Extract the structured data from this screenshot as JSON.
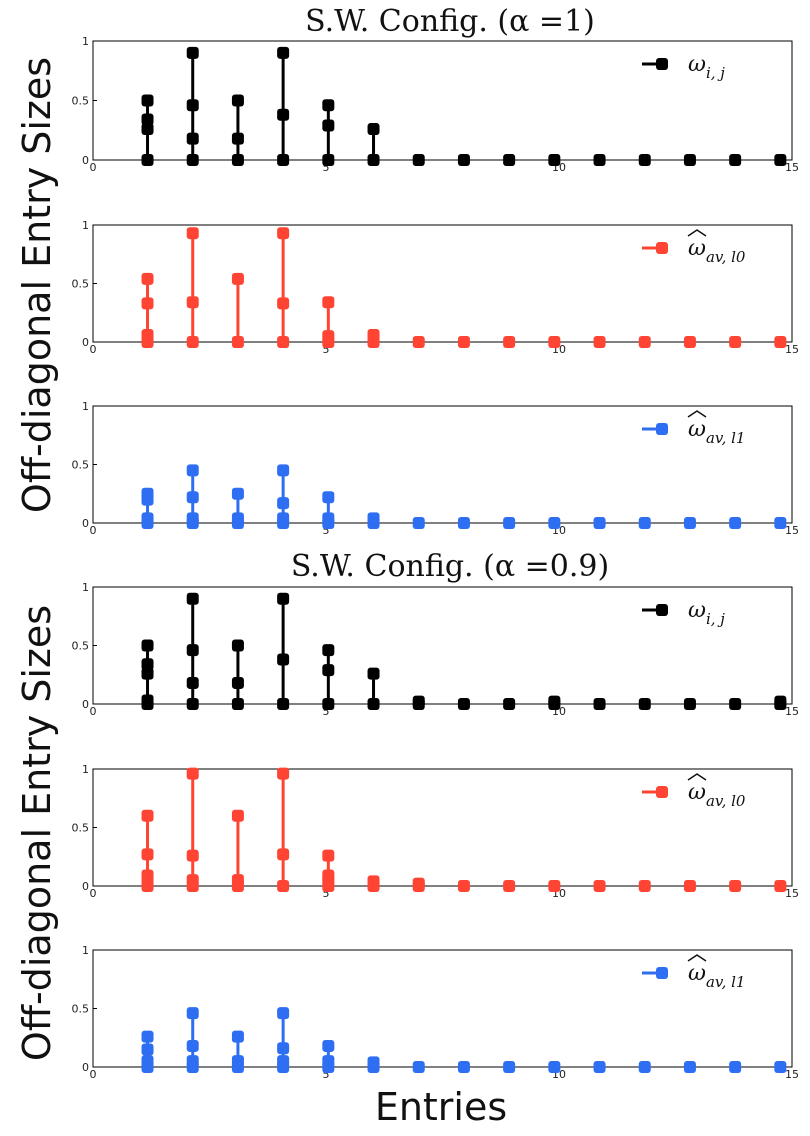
{
  "ylabel": "Off-diagonal Entry Sizes",
  "xlabel": "Entries",
  "chart_data": [
    {
      "title": "S.W. Config. (α =1)",
      "panels": [
        {
          "type": "scatter",
          "style": "stem",
          "legend": "ω_{i,j}",
          "legend_parts": {
            "base": "ω",
            "sub": "i, j",
            "hat": false
          },
          "color": "#000000",
          "xlim": [
            0,
            15
          ],
          "ylim": [
            0,
            1
          ],
          "xticks": [
            0,
            5,
            10,
            15
          ],
          "yticks": [
            0,
            0.5,
            1
          ],
          "x": [
            1,
            2,
            3,
            4,
            5,
            6,
            7,
            8,
            9,
            10,
            11,
            12,
            13,
            14,
            15
          ],
          "points": [
            [
              0,
              0.26,
              0.34,
              0.5
            ],
            [
              0,
              0.18,
              0.46,
              0.9
            ],
            [
              0,
              0.18,
              0.5
            ],
            [
              0,
              0.38,
              0.9
            ],
            [
              0,
              0.29,
              0.46
            ],
            [
              0,
              0.26
            ],
            [
              0
            ],
            [
              0
            ],
            [
              0
            ],
            [
              0
            ],
            [
              0
            ],
            [
              0
            ],
            [
              0
            ],
            [
              0
            ],
            [
              0
            ]
          ]
        },
        {
          "type": "scatter",
          "style": "stem",
          "legend": "ω̂_{av,l0}",
          "legend_parts": {
            "base": "ω",
            "sub": "av, l0",
            "hat": true
          },
          "color": "#ff4433",
          "xlim": [
            0,
            15
          ],
          "ylim": [
            0,
            1
          ],
          "xticks": [
            0,
            5,
            10,
            15
          ],
          "yticks": [
            0,
            0.5,
            1
          ],
          "x": [
            1,
            2,
            3,
            4,
            5,
            6,
            7,
            8,
            9,
            10,
            11,
            12,
            13,
            14,
            15
          ],
          "points": [
            [
              0,
              0.06,
              0.33,
              0.54
            ],
            [
              0,
              0.34,
              0.93
            ],
            [
              0,
              0.54
            ],
            [
              0,
              0.33,
              0.93
            ],
            [
              0,
              0.05,
              0.34
            ],
            [
              0,
              0.06
            ],
            [
              0
            ],
            [
              0
            ],
            [
              0
            ],
            [
              0
            ],
            [
              0
            ],
            [
              0
            ],
            [
              0
            ],
            [
              0
            ],
            [
              0
            ]
          ]
        },
        {
          "type": "scatter",
          "style": "stem",
          "legend": "ω̂_{av,l1}",
          "legend_parts": {
            "base": "ω",
            "sub": "av, l1",
            "hat": true
          },
          "color": "#2d6ef2",
          "xlim": [
            0,
            15
          ],
          "ylim": [
            0,
            1
          ],
          "xticks": [
            0,
            5,
            10,
            15
          ],
          "yticks": [
            0,
            0.5,
            1
          ],
          "x": [
            1,
            2,
            3,
            4,
            5,
            6,
            7,
            8,
            9,
            10,
            11,
            12,
            13,
            14,
            15
          ],
          "points": [
            [
              0,
              0.04,
              0.2,
              0.25
            ],
            [
              0,
              0.04,
              0.22,
              0.45
            ],
            [
              0,
              0.04,
              0.25
            ],
            [
              0,
              0.04,
              0.17,
              0.45
            ],
            [
              0,
              0.04,
              0.22
            ],
            [
              0,
              0.04
            ],
            [
              0
            ],
            [
              0
            ],
            [
              0
            ],
            [
              0
            ],
            [
              0
            ],
            [
              0
            ],
            [
              0
            ],
            [
              0
            ],
            [
              0
            ]
          ]
        }
      ]
    },
    {
      "title": "S.W. Config. (α =0.9)",
      "panels": [
        {
          "type": "scatter",
          "style": "stem",
          "legend": "ω_{i,j}",
          "legend_parts": {
            "base": "ω",
            "sub": "i, j",
            "hat": false
          },
          "color": "#000000",
          "xlim": [
            0,
            15
          ],
          "ylim": [
            0,
            1
          ],
          "xticks": [
            0,
            5,
            10,
            15
          ],
          "yticks": [
            0,
            0.5,
            1
          ],
          "x": [
            1,
            2,
            3,
            4,
            5,
            6,
            7,
            8,
            9,
            10,
            11,
            12,
            13,
            14,
            15
          ],
          "points": [
            [
              0,
              0.03,
              0.26,
              0.34,
              0.5
            ],
            [
              0,
              0.18,
              0.46,
              0.9
            ],
            [
              0,
              0.18,
              0.5
            ],
            [
              0,
              0.38,
              0.9
            ],
            [
              0,
              0.29,
              0.46
            ],
            [
              0,
              0.26
            ],
            [
              0,
              0.02
            ],
            [
              0
            ],
            [
              0
            ],
            [
              0,
              0.02
            ],
            [
              0
            ],
            [
              0
            ],
            [
              0
            ],
            [
              0
            ],
            [
              0,
              0.02
            ]
          ]
        },
        {
          "type": "scatter",
          "style": "stem",
          "legend": "ω̂_{av,l0}",
          "legend_parts": {
            "base": "ω",
            "sub": "av, l0",
            "hat": true
          },
          "color": "#ff4433",
          "xlim": [
            0,
            15
          ],
          "ylim": [
            0,
            1
          ],
          "xticks": [
            0,
            5,
            10,
            15
          ],
          "yticks": [
            0,
            0.5,
            1
          ],
          "x": [
            1,
            2,
            3,
            4,
            5,
            6,
            7,
            8,
            9,
            10,
            11,
            12,
            13,
            14,
            15
          ],
          "points": [
            [
              0,
              0.04,
              0.09,
              0.27,
              0.6
            ],
            [
              0,
              0.05,
              0.26,
              0.96
            ],
            [
              0,
              0.05,
              0.6
            ],
            [
              0,
              0.27,
              0.96
            ],
            [
              0,
              0.05,
              0.09,
              0.26
            ],
            [
              0,
              0.04
            ],
            [
              0,
              0.02
            ],
            [
              0
            ],
            [
              0
            ],
            [
              0
            ],
            [
              0
            ],
            [
              0
            ],
            [
              0
            ],
            [
              0
            ],
            [
              0
            ]
          ]
        },
        {
          "type": "scatter",
          "style": "stem",
          "legend": "ω̂_{av,l1}",
          "legend_parts": {
            "base": "ω",
            "sub": "av, l1",
            "hat": true
          },
          "color": "#2d6ef2",
          "xlim": [
            0,
            15
          ],
          "ylim": [
            0,
            1
          ],
          "xticks": [
            0,
            5,
            10,
            15
          ],
          "yticks": [
            0,
            0.5,
            1
          ],
          "x": [
            1,
            2,
            3,
            4,
            5,
            6,
            7,
            8,
            9,
            10,
            11,
            12,
            13,
            14,
            15
          ],
          "points": [
            [
              0,
              0.05,
              0.15,
              0.26
            ],
            [
              0,
              0.05,
              0.18,
              0.46
            ],
            [
              0,
              0.05,
              0.26
            ],
            [
              0,
              0.05,
              0.16,
              0.46
            ],
            [
              0,
              0.05,
              0.18
            ],
            [
              0,
              0.04
            ],
            [
              0
            ],
            [
              0
            ],
            [
              0
            ],
            [
              0
            ],
            [
              0
            ],
            [
              0
            ],
            [
              0
            ],
            [
              0
            ],
            [
              0
            ]
          ]
        }
      ]
    }
  ]
}
